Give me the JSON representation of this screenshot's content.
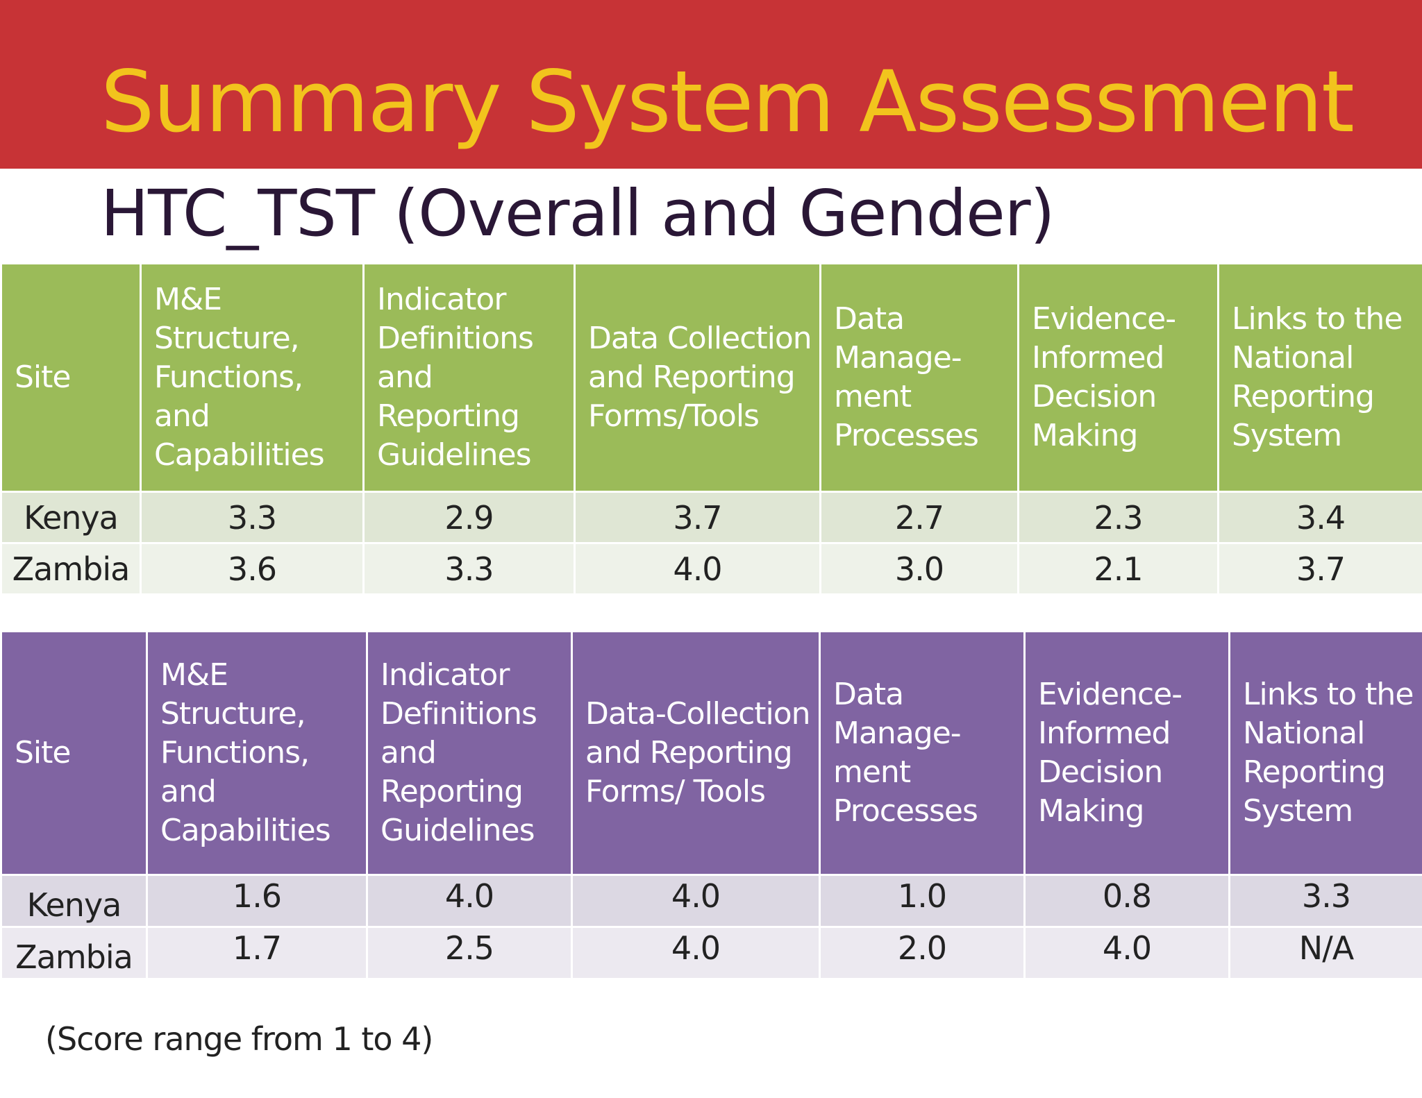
{
  "title": "Summary System Assessment",
  "subtitle": "HTC_TST (Overall and Gender)",
  "colors": {
    "title_bar": "#c73336",
    "title_text": "#f2c41d",
    "table1_header": "#9bbb59",
    "table2_header": "#8064a2"
  },
  "table_overall": {
    "headers": [
      "Site",
      "M&E Structure, Functions, and Capabilities",
      "Indicator Definitions and Reporting Guidelines",
      "Data Collection and Reporting Forms/Tools",
      "Data Manage-ment Processes",
      "Evidence-Informed Decision Making",
      "Links to the National Reporting System"
    ],
    "rows": [
      [
        "Kenya",
        "3.3",
        "2.9",
        "3.7",
        "2.7",
        "2.3",
        "3.4"
      ],
      [
        "Zambia",
        "3.6",
        "3.3",
        "4.0",
        "3.0",
        "2.1",
        "3.7"
      ]
    ]
  },
  "table_gender": {
    "headers": [
      "Site",
      "M&E Structure, Functions, and Capabilities",
      "Indicator Definitions and Reporting Guidelines",
      "Data-Collection and Reporting Forms/ Tools",
      "Data Manage-ment Processes",
      "Evidence-Informed Decision Making",
      "Links to the National Reporting System"
    ],
    "rows": [
      [
        "Kenya",
        "1.6",
        "4.0",
        "4.0",
        "1.0",
        "0.8",
        "3.3"
      ],
      [
        "Zambia",
        "1.7",
        "2.5",
        "4.0",
        "2.0",
        "4.0",
        "N/A"
      ]
    ]
  },
  "note": "(Score range from 1 to 4)"
}
